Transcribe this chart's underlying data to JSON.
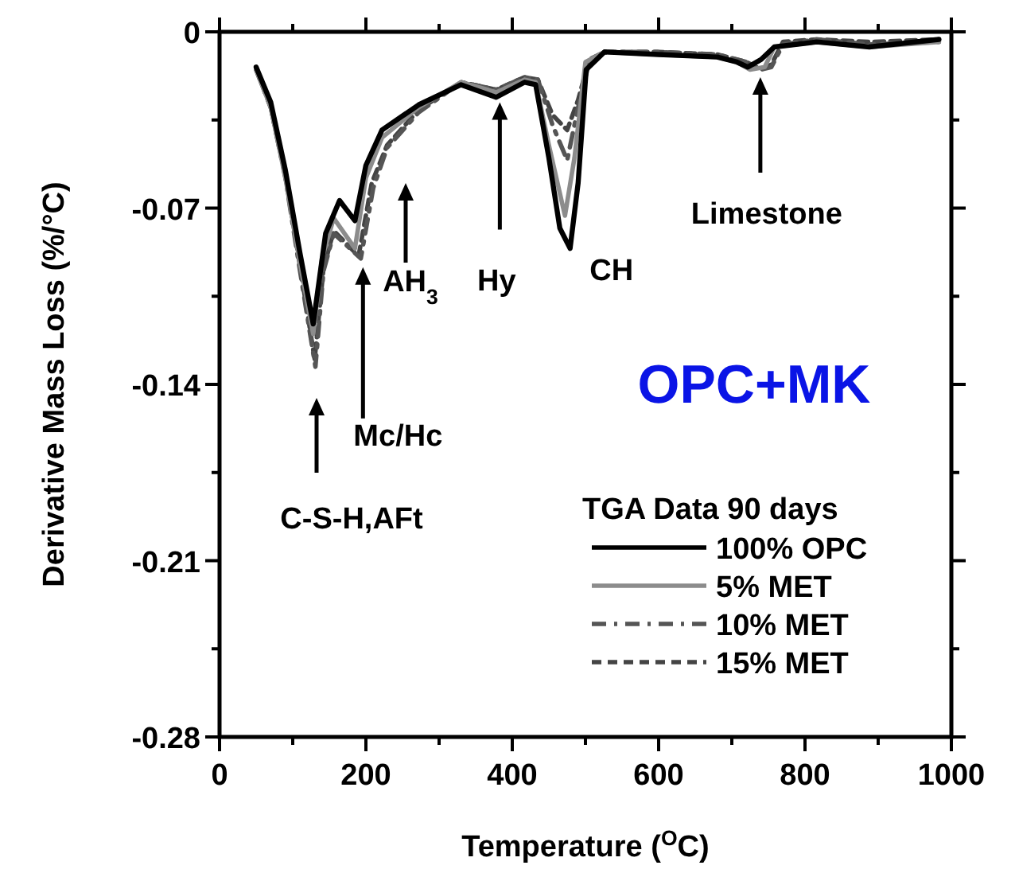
{
  "chart_data": {
    "type": "line",
    "xlabel": "Temperature ($^{O}$C)",
    "ylabel": "Derivative Mass Loss (%/°C)",
    "legend_title": "TGA Data 90 days",
    "legend": "bottom right",
    "xlim": [
      0,
      1000
    ],
    "ylim": [
      -0.28,
      0
    ],
    "xticks": [
      0,
      {
        "value": 100,
        "label": null
      },
      200,
      {
        "value": 300,
        "label": null
      },
      400,
      {
        "value": 500,
        "label": null
      },
      600,
      {
        "value": 700,
        "label": null
      },
      800,
      {
        "value": 900,
        "label": null
      },
      1000
    ],
    "yticks": [
      {
        "value": -0.28,
        "label": "-0.28"
      },
      {
        "value": -0.245,
        "label": null
      },
      {
        "value": -0.21,
        "label": "-0.21"
      },
      {
        "value": -0.175,
        "label": null
      },
      {
        "value": -0.14,
        "label": "-0.14"
      },
      {
        "value": -0.105,
        "label": null
      },
      {
        "value": -0.07,
        "label": "-0.07"
      },
      {
        "value": -0.035,
        "label": null
      },
      {
        "value": 0,
        "label": "0"
      }
    ],
    "series": [
      {
        "name": "100% OPC",
        "color": "#000000",
        "line_style": "solid",
        "x": [
          50,
          70,
          90,
          110,
          128,
          145,
          164,
          185,
          200,
          222,
          272,
          330,
          378,
          417,
          432,
          450,
          465,
          479,
          490,
          501,
          526,
          600,
          680,
          707,
          722,
          740,
          758,
          816,
          888,
          983
        ],
        "values": [
          -0.014,
          -0.028,
          -0.055,
          -0.088,
          -0.116,
          -0.08,
          -0.067,
          -0.075,
          -0.053,
          -0.039,
          -0.029,
          -0.021,
          -0.026,
          -0.02,
          -0.021,
          -0.05,
          -0.078,
          -0.086,
          -0.06,
          -0.015,
          -0.008,
          -0.009,
          -0.01,
          -0.012,
          -0.014,
          -0.011,
          -0.006,
          -0.004,
          -0.006,
          -0.003
        ]
      },
      {
        "name": "5% MET",
        "color": "#8c8c8c",
        "line_style": "solid",
        "x": [
          50,
          70,
          90,
          110,
          128,
          140,
          156,
          185,
          200,
          222,
          272,
          330,
          378,
          417,
          432,
          450,
          472,
          485,
          500,
          526,
          600,
          680,
          707,
          725,
          745,
          758,
          816,
          888,
          983
        ],
        "values": [
          -0.015,
          -0.03,
          -0.058,
          -0.092,
          -0.12,
          -0.09,
          -0.074,
          -0.086,
          -0.058,
          -0.042,
          -0.03,
          -0.02,
          -0.024,
          -0.019,
          -0.02,
          -0.045,
          -0.073,
          -0.05,
          -0.012,
          -0.008,
          -0.009,
          -0.01,
          -0.012,
          -0.015,
          -0.014,
          -0.006,
          -0.004,
          -0.006,
          -0.004
        ]
      },
      {
        "name": "10% MET",
        "color": "#555555",
        "line_style": "dotted",
        "x": [
          50,
          70,
          90,
          110,
          131,
          142,
          156,
          193,
          210,
          229,
          272,
          330,
          378,
          417,
          435,
          455,
          475,
          490,
          505,
          526,
          600,
          680,
          720,
          740,
          754,
          770,
          816,
          888,
          983
        ],
        "values": [
          -0.015,
          -0.03,
          -0.058,
          -0.095,
          -0.133,
          -0.095,
          -0.08,
          -0.09,
          -0.062,
          -0.046,
          -0.032,
          -0.02,
          -0.023,
          -0.018,
          -0.019,
          -0.037,
          -0.051,
          -0.03,
          -0.012,
          -0.008,
          -0.008,
          -0.009,
          -0.012,
          -0.015,
          -0.014,
          -0.005,
          -0.003,
          -0.005,
          -0.004
        ]
      },
      {
        "name": "15% MET",
        "color": "#444444",
        "line_style": "dashed",
        "x": [
          50,
          70,
          90,
          110,
          130,
          142,
          156,
          190,
          208,
          229,
          272,
          330,
          378,
          417,
          435,
          455,
          475,
          490,
          505,
          526,
          600,
          680,
          720,
          740,
          754,
          770,
          816,
          888,
          983
        ],
        "values": [
          -0.015,
          -0.03,
          -0.057,
          -0.093,
          -0.13,
          -0.094,
          -0.079,
          -0.089,
          -0.06,
          -0.045,
          -0.031,
          -0.02,
          -0.023,
          -0.018,
          -0.019,
          -0.033,
          -0.039,
          -0.027,
          -0.011,
          -0.008,
          -0.008,
          -0.009,
          -0.012,
          -0.015,
          -0.013,
          -0.004,
          -0.003,
          -0.004,
          -0.003
        ]
      }
    ],
    "annotations": [
      "C-S-H,AFt",
      {
        "text": "Mc/Hc",
        "x": 196,
        "y": -0.0935
      },
      "AH$_{3}$",
      {
        "text": "Hy",
        "x": 383,
        "y": -0.028
      },
      {
        "text": "CH",
        "x": 479,
        "y": -0.086
      },
      {
        "text": "Limestone",
        "x": 739,
        "y": -0.018
      },
      "OPC+MK"
    ]
  }
}
